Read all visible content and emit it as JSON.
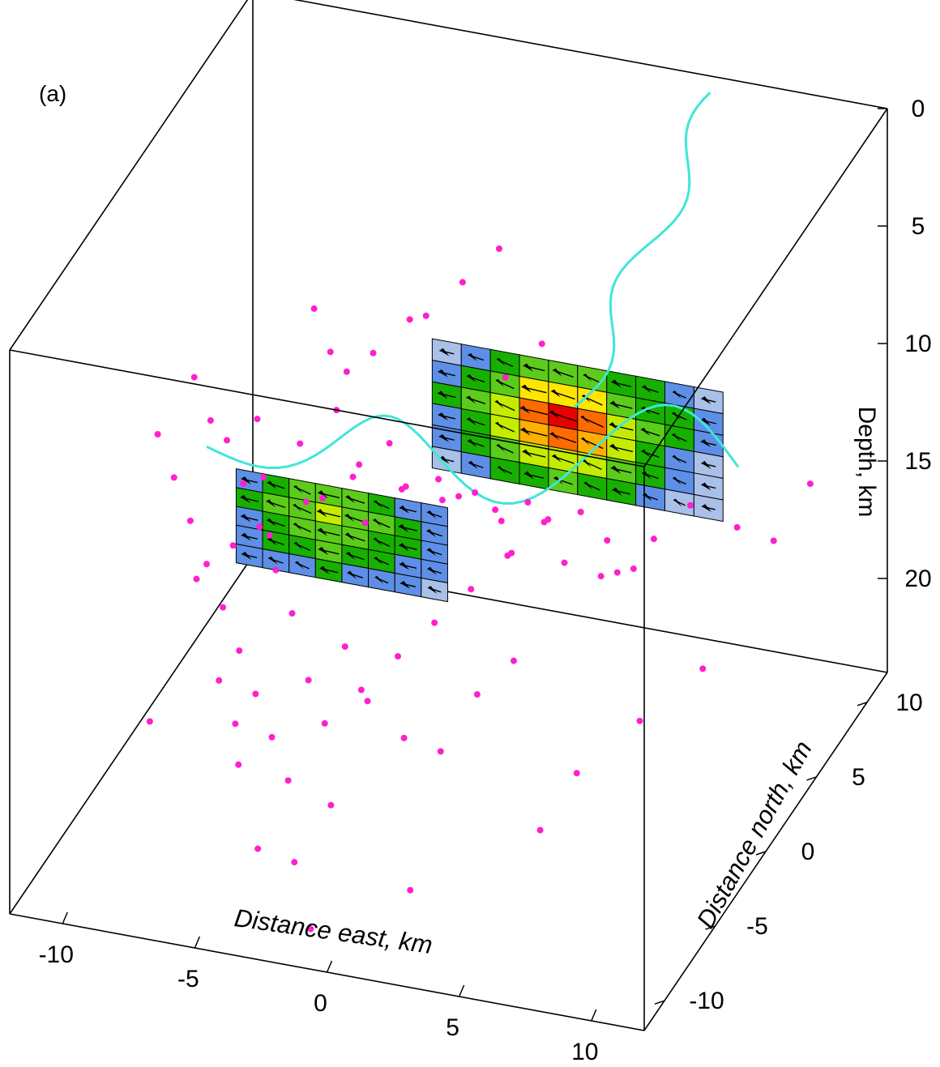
{
  "panel_label": "(a)",
  "chart_data": {
    "type": "scatter",
    "title": "",
    "axes": {
      "x": {
        "label": "Distance east, km",
        "ticks": [
          -10,
          -5,
          0,
          5,
          10
        ],
        "range": [
          -12,
          12
        ]
      },
      "y": {
        "label": "Distance north, km",
        "ticks": [
          -10,
          -5,
          0,
          5,
          10
        ],
        "range": [
          -12,
          12
        ]
      },
      "z": {
        "label": "Depth, km",
        "ticks": [
          0,
          5,
          10,
          15,
          20
        ],
        "range": [
          0,
          24
        ],
        "inverted": true
      }
    },
    "colors": {
      "seismicity": "#ff1fce",
      "surface_rupture": "#3fe6d8",
      "slip_low": "#a9c0e8",
      "slip_high": "#e60000"
    },
    "series": [
      {
        "kind": "seismicity",
        "points": [
          [
            -4.5,
            -9,
            18
          ],
          [
            -3,
            -11,
            20
          ],
          [
            -5,
            -8,
            17
          ],
          [
            -2,
            -10,
            21
          ],
          [
            -6,
            -7,
            16
          ],
          [
            -1,
            -9,
            19
          ],
          [
            0,
            -8,
            15
          ],
          [
            1,
            -7,
            17
          ],
          [
            -3,
            -6,
            16
          ],
          [
            -4,
            -5,
            14
          ],
          [
            -2,
            -5,
            15
          ],
          [
            2,
            -6,
            18
          ],
          [
            3,
            -5,
            16
          ],
          [
            4,
            -4,
            15
          ],
          [
            -5,
            -4,
            13
          ],
          [
            -6,
            -3,
            12
          ],
          [
            -7,
            -2,
            11
          ],
          [
            -8,
            -1,
            10
          ],
          [
            -9,
            0,
            10
          ],
          [
            -10,
            1,
            9
          ],
          [
            -8,
            2,
            11
          ],
          [
            -7,
            0,
            12
          ],
          [
            -6,
            1,
            11
          ],
          [
            -5,
            2,
            10
          ],
          [
            -4,
            1,
            12
          ],
          [
            -3,
            2,
            11
          ],
          [
            -2,
            1,
            12
          ],
          [
            -1,
            2,
            13
          ],
          [
            0,
            1,
            12
          ],
          [
            1,
            2,
            13
          ],
          [
            2,
            1,
            14
          ],
          [
            3,
            2,
            13
          ],
          [
            4,
            1,
            14
          ],
          [
            5,
            2,
            15
          ],
          [
            6,
            1,
            14
          ],
          [
            7,
            2,
            13
          ],
          [
            8,
            3,
            12
          ],
          [
            -9,
            -2,
            13
          ],
          [
            -10,
            -1,
            12
          ],
          [
            -11,
            0,
            11
          ],
          [
            -8,
            -3,
            14
          ],
          [
            -7,
            -4,
            15
          ],
          [
            -6,
            -5,
            16
          ],
          [
            -5,
            -6,
            17
          ],
          [
            -4,
            -7,
            18
          ],
          [
            -3,
            -8,
            19
          ],
          [
            -2,
            -7,
            17
          ],
          [
            -1,
            -6,
            16
          ],
          [
            0,
            -5,
            15
          ],
          [
            1,
            -4,
            14
          ],
          [
            2,
            -3,
            13
          ],
          [
            3,
            -2,
            12
          ],
          [
            4,
            -1,
            11
          ],
          [
            5,
            0,
            11
          ],
          [
            6,
            0,
            12
          ],
          [
            7,
            0,
            13
          ],
          [
            -2,
            -3,
            11
          ],
          [
            -1,
            -2,
            10
          ],
          [
            0,
            -1,
            10
          ],
          [
            1,
            0,
            11
          ],
          [
            2,
            0,
            12
          ],
          [
            3,
            0,
            11
          ],
          [
            -3,
            -1,
            10
          ],
          [
            -4,
            -2,
            11
          ],
          [
            -5,
            -1,
            12
          ],
          [
            -6,
            -2,
            13
          ],
          [
            -7,
            -3,
            13
          ],
          [
            -8,
            -4,
            14
          ],
          [
            -2,
            3,
            6
          ],
          [
            -1,
            4,
            5
          ],
          [
            0,
            5,
            4
          ],
          [
            -3,
            4,
            7
          ],
          [
            -4,
            3,
            8
          ],
          [
            -5,
            3,
            9
          ],
          [
            1,
            3,
            8
          ],
          [
            2,
            4,
            7
          ],
          [
            -6,
            4,
            9
          ],
          [
            -7,
            5,
            8
          ],
          [
            9,
            5,
            14
          ],
          [
            10,
            6,
            15
          ],
          [
            11,
            7,
            13
          ],
          [
            8,
            -2,
            18
          ],
          [
            6,
            -3,
            20
          ],
          [
            5,
            -4,
            22
          ],
          [
            -1,
            -11,
            23
          ],
          [
            2,
            -9,
            22
          ],
          [
            -9,
            -6,
            19
          ],
          [
            10,
            -1,
            16
          ]
        ]
      },
      {
        "kind": "fault_slip",
        "segments": [
          {
            "slip": [
              [
                0.25,
                0.4,
                0.5,
                0.55,
                0.5,
                0.4,
                0.3,
                0.25
              ],
              [
                0.35,
                0.5,
                0.6,
                0.65,
                0.6,
                0.5,
                0.4,
                0.3
              ],
              [
                0.3,
                0.45,
                0.55,
                0.6,
                0.55,
                0.45,
                0.35,
                0.25
              ],
              [
                0.25,
                0.35,
                0.45,
                0.5,
                0.45,
                0.35,
                0.3,
                0.2
              ],
              [
                0.2,
                0.25,
                0.3,
                0.35,
                0.3,
                0.25,
                0.2,
                0.15
              ]
            ]
          },
          {
            "slip": [
              [
                0.15,
                0.3,
                0.45,
                0.55,
                0.6,
                0.55,
                0.45,
                0.35,
                0.25,
                0.15
              ],
              [
                0.3,
                0.45,
                0.6,
                0.75,
                0.8,
                0.75,
                0.6,
                0.45,
                0.35,
                0.2
              ],
              [
                0.35,
                0.5,
                0.7,
                0.9,
                1.0,
                0.9,
                0.7,
                0.5,
                0.35,
                0.2
              ],
              [
                0.3,
                0.45,
                0.65,
                0.85,
                0.95,
                0.85,
                0.65,
                0.45,
                0.3,
                0.15
              ],
              [
                0.2,
                0.35,
                0.5,
                0.65,
                0.7,
                0.65,
                0.5,
                0.35,
                0.25,
                0.15
              ],
              [
                0.15,
                0.25,
                0.35,
                0.45,
                0.5,
                0.45,
                0.35,
                0.25,
                0.15,
                0.1
              ]
            ]
          }
        ]
      }
    ],
    "grid": false,
    "legend": "none"
  }
}
